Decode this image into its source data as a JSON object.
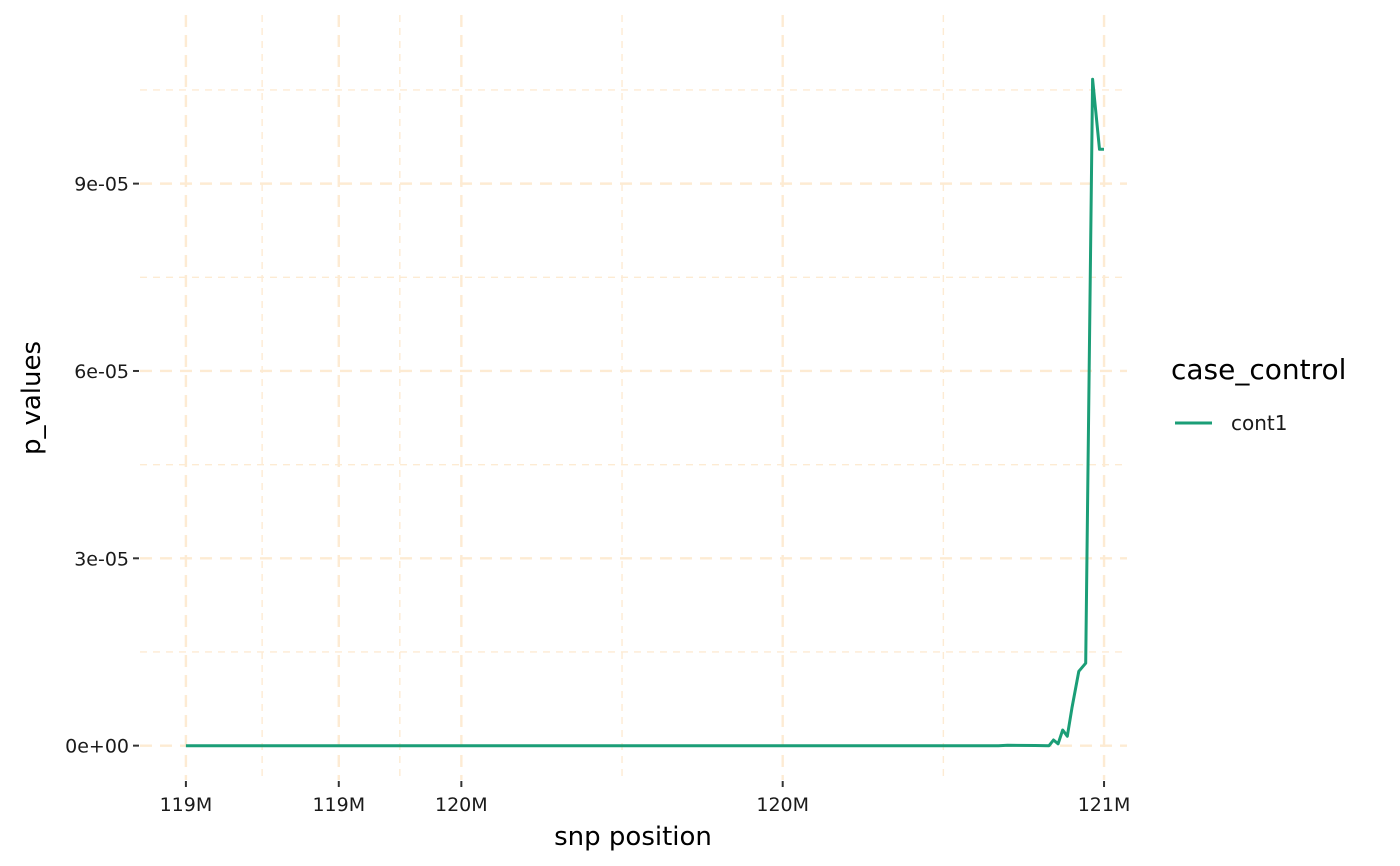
{
  "chart_data": {
    "type": "line",
    "xlabel": "snp position",
    "ylabel": "p_values",
    "x_unit": "bp",
    "xlim": [
      118900000,
      121050000
    ],
    "ylim": [
      -5.5e-06,
      0.000113
    ],
    "y_major_ticks": [
      0,
      3e-05,
      6e-05,
      9e-05
    ],
    "y_tick_labels": [
      "0e+00",
      "3e-05",
      "6e-05",
      "9e-05"
    ],
    "y_minor_ticks": [
      1.5e-05,
      4.5e-05,
      7.5e-05,
      0.000105
    ],
    "x_major_ticks": [
      119000000,
      119333000,
      119600000,
      120300000,
      121000000
    ],
    "x_tick_labels": [
      "119M",
      "119M",
      "120M",
      "120M",
      "121M"
    ],
    "x_minor_ticks": [
      119166000,
      119466000,
      119950000,
      120650000
    ],
    "grid": true,
    "grid_color": "#fdebd3",
    "legend": {
      "title": "case_control",
      "position": "right"
    },
    "series": [
      {
        "name": "cont1",
        "color": "#1b9e77",
        "x": [
          119000000,
          120000000,
          120770000,
          120790000,
          120850000,
          120880000,
          120890000,
          120900000,
          120910000,
          120920000,
          120930000,
          120945000,
          120960000,
          120975000,
          120990000,
          121000000
        ],
        "y": [
          0,
          0,
          0,
          5e-08,
          2e-08,
          0,
          9e-07,
          3e-07,
          2.5e-06,
          1.5e-06,
          6e-06,
          1.19e-05,
          1.32e-05,
          0.0001067,
          9.55e-05,
          9.55e-05
        ]
      }
    ]
  }
}
